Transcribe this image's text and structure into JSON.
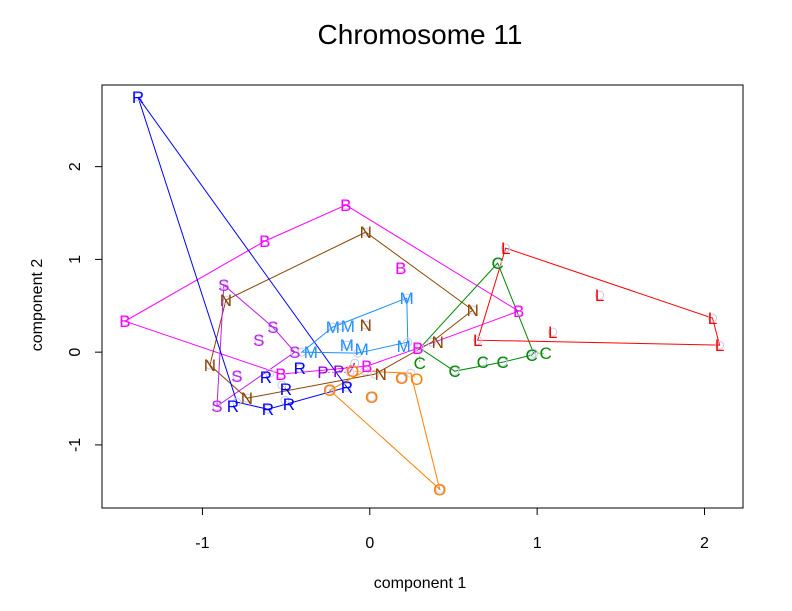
{
  "chart_data": {
    "type": "scatter",
    "title": "Chromosome 11",
    "xlabel": "component 1",
    "ylabel": "component 2",
    "xlim": [
      -1.6,
      2.23
    ],
    "ylim": [
      -1.68,
      2.88
    ],
    "xticks": [
      -1,
      0,
      1,
      2
    ],
    "yticks": [
      -1,
      0,
      1,
      2
    ],
    "grid": false,
    "hulls": true,
    "series": [
      {
        "label": "B",
        "color": "#FF00FF",
        "points": [
          [
            -1.463,
            0.334
          ],
          [
            -0.627,
            1.197
          ],
          [
            -0.143,
            1.586
          ],
          [
            0.185,
            0.906
          ],
          [
            0.89,
            0.442
          ],
          [
            0.287,
            0.043
          ],
          [
            -0.018,
            -0.151
          ],
          [
            -0.531,
            -0.237
          ]
        ]
      },
      {
        "label": "N",
        "color": "#8B4500",
        "points": [
          [
            -0.86,
            0.561
          ],
          [
            -0.955,
            -0.14
          ],
          [
            -0.734,
            -0.496
          ],
          [
            -0.024,
            1.294
          ],
          [
            0.615,
            0.453
          ],
          [
            -0.024,
            0.291
          ],
          [
            0.03,
            -0.237
          ],
          [
            0.37,
            0.108
          ]
        ]
      },
      {
        "label": "S",
        "color": "#BF1FEF",
        "points": [
          [
            -0.872,
            0.723
          ],
          [
            -0.579,
            0.27
          ],
          [
            -0.663,
            0.129
          ],
          [
            -0.794,
            -0.259
          ],
          [
            -0.913,
            -0.583
          ],
          [
            -0.448,
            0.0
          ]
        ]
      },
      {
        "label": "R",
        "color": "#0000FF",
        "points": [
          [
            -1.385,
            2.751
          ],
          [
            -0.418,
            -0.173
          ],
          [
            -0.597,
            -0.227
          ],
          [
            -0.525,
            -0.356
          ],
          [
            -0.507,
            -0.518
          ],
          [
            -0.794,
            -0.539
          ],
          [
            -0.609,
            -0.615
          ],
          [
            -0.137,
            -0.378
          ]
        ]
      },
      {
        "label": "M",
        "color": "#1E90FF",
        "points": [
          [
            0.221,
            0.583
          ],
          [
            -0.221,
            0.27
          ],
          [
            -0.167,
            0.28
          ],
          [
            -0.137,
            0.076
          ],
          [
            -0.072,
            -0.011
          ],
          [
            0.227,
            0.108
          ],
          [
            -0.406,
            0.0
          ]
        ]
      },
      {
        "label": "C",
        "color": "#008B00",
        "points": [
          [
            0.764,
            0.96
          ],
          [
            0.299,
            0.043
          ],
          [
            0.507,
            -0.205
          ],
          [
            0.675,
            -0.108
          ],
          [
            0.794,
            -0.108
          ],
          [
            0.967,
            -0.032
          ],
          [
            0.979,
            -0.011
          ]
        ]
      },
      {
        "label": "L",
        "color": "#FF0000",
        "points": [
          [
            0.812,
            1.122
          ],
          [
            0.645,
            0.129
          ],
          [
            1.093,
            0.216
          ],
          [
            1.373,
            0.615
          ],
          [
            2.048,
            0.367
          ],
          [
            2.09,
            0.076
          ]
        ]
      },
      {
        "label": "O",
        "color": "#FF7F00",
        "points": [
          [
            -0.239,
            -0.41
          ],
          [
            -0.03,
            -0.205
          ],
          [
            0.012,
            -0.485
          ],
          [
            0.191,
            -0.281
          ],
          [
            0.245,
            -0.227
          ],
          [
            0.418,
            -1.478
          ]
        ]
      },
      {
        "label": "P",
        "color": "#9400D3",
        "points": [
          [
            -0.09,
            -0.119
          ],
          [
            -0.119,
            -0.216
          ]
        ]
      }
    ]
  }
}
